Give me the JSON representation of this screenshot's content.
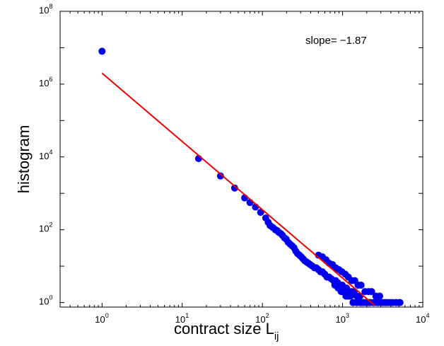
{
  "chart_data": {
    "type": "scatter",
    "xlabel": "contract size L",
    "xlabel_sub": "ij",
    "ylabel": "histogram",
    "xscale": "log",
    "yscale": "log",
    "xlim": [
      0.3,
      10000
    ],
    "ylim": [
      0.75,
      100000000
    ],
    "xticks": [
      {
        "base": "10",
        "exp": "0"
      },
      {
        "base": "10",
        "exp": "1"
      },
      {
        "base": "10",
        "exp": "2"
      },
      {
        "base": "10",
        "exp": "3"
      },
      {
        "base": "10",
        "exp": "4"
      }
    ],
    "yticks": [
      {
        "base": "10",
        "exp": "0"
      },
      {
        "base": "10",
        "exp": "2"
      },
      {
        "base": "10",
        "exp": "4"
      },
      {
        "base": "10",
        "exp": "6"
      },
      {
        "base": "10",
        "exp": "8"
      }
    ],
    "annotation": "slope= −1.87",
    "grid": false,
    "colors": {
      "points": "#0000ee",
      "fit": "#ee0000",
      "axes": "#000000"
    },
    "fit_line": {
      "slope": -1.87,
      "x": [
        1,
        2500
      ],
      "y": [
        2000000,
        0.84
      ]
    },
    "series": [
      {
        "x": [
          1,
          16,
          30,
          45,
          60,
          70,
          82,
          95,
          110,
          118,
          125,
          135,
          145,
          152,
          160,
          170,
          178,
          188,
          198,
          210,
          222,
          235,
          248,
          260,
          275,
          290,
          305,
          320,
          338,
          355,
          375,
          395,
          420,
          445,
          470,
          500,
          530,
          560,
          600,
          640,
          680,
          720,
          770,
          820,
          870,
          930,
          990,
          1050,
          1120,
          1200,
          1300,
          1400,
          1500,
          1650,
          1800,
          2000,
          2200,
          2500,
          2800,
          3200,
          3600,
          4000,
          4600,
          5200,
          500,
          560,
          620,
          680,
          750,
          820,
          900,
          980,
          1080,
          1180,
          1300,
          1420,
          1560,
          1700,
          1900,
          2100,
          2300,
          2600,
          2900,
          800,
          880,
          960,
          1050,
          1150,
          1250,
          1350,
          1500,
          1650,
          1800,
          2000,
          2200,
          2400,
          2700,
          3000,
          3400,
          3800,
          4200,
          4700,
          5100,
          1000,
          1100,
          1200,
          1350,
          1500,
          1700,
          1900,
          2100,
          2400,
          2700,
          3000,
          3400
        ],
        "y": [
          8000000,
          9000,
          3000,
          1400,
          750,
          560,
          420,
          300,
          210,
          160,
          130,
          115,
          100,
          95,
          85,
          78,
          70,
          60,
          55,
          45,
          40,
          36,
          32,
          26,
          22,
          20,
          18,
          16,
          14,
          13,
          12,
          11,
          10,
          9,
          9,
          8,
          7,
          7,
          6,
          5,
          5,
          4.5,
          4,
          4,
          3.5,
          3,
          3,
          2.5,
          2.5,
          2,
          2,
          2,
          1.5,
          1.5,
          1,
          1,
          1,
          1,
          1,
          1,
          1,
          1,
          1,
          1,
          20,
          18,
          15,
          12,
          11,
          9,
          8,
          7,
          6,
          5,
          4,
          4,
          3,
          3,
          2,
          2,
          2,
          1.5,
          1.5,
          3,
          2.5,
          2,
          2,
          1.5,
          1.5,
          1,
          1,
          1,
          1,
          1,
          1,
          1,
          1,
          1,
          1,
          1,
          1,
          1,
          1,
          2,
          1.5,
          1.5,
          1,
          1,
          1,
          1,
          1,
          1,
          1,
          1,
          1
        ]
      }
    ]
  }
}
